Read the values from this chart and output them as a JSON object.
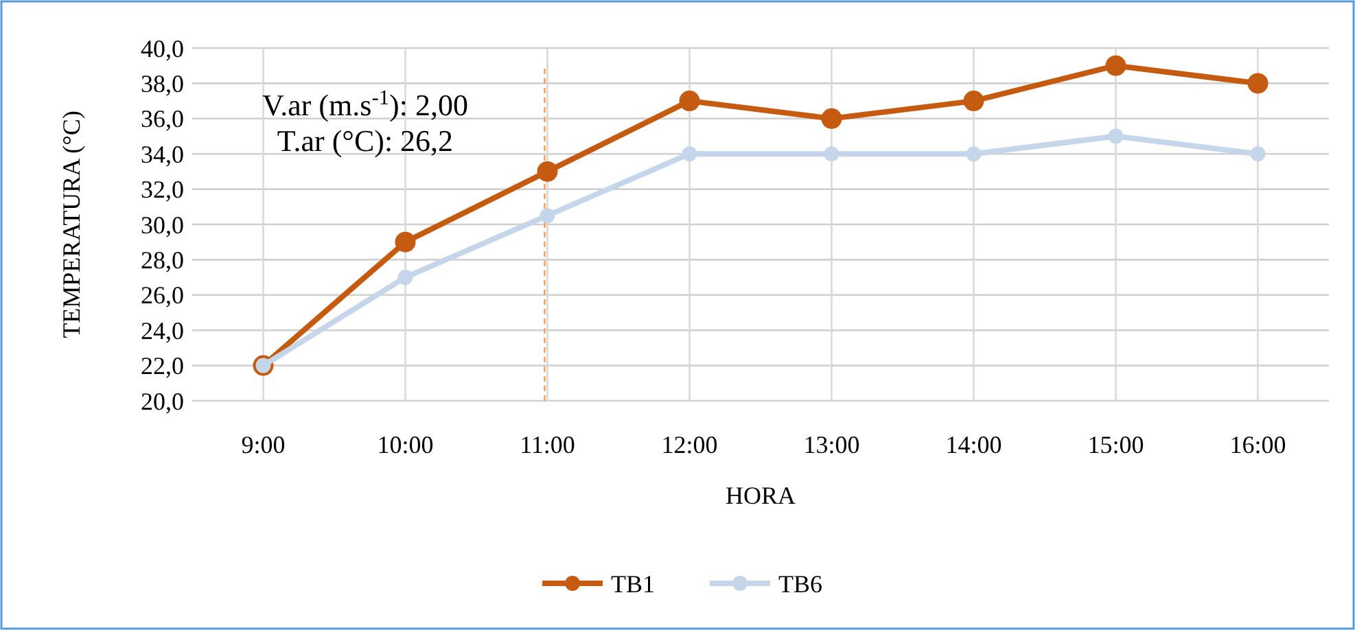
{
  "chart_data": {
    "type": "line",
    "xlabel": "HORA",
    "ylabel": "TEMPERATURA (°C)",
    "categories": [
      "9:00",
      "10:00",
      "11:00",
      "12:00",
      "13:00",
      "14:00",
      "15:00",
      "16:00"
    ],
    "series": [
      {
        "name": "TB1",
        "color": "#c55a11",
        "values": [
          22,
          29,
          33,
          37,
          36,
          37,
          39,
          38
        ]
      },
      {
        "name": "TB6",
        "color": "#c5d5ea",
        "values": [
          22,
          27,
          30.5,
          34,
          34,
          34,
          35,
          34
        ]
      }
    ],
    "ylim": [
      20,
      40
    ],
    "yticks": [
      {
        "value": 20,
        "label": "20,0"
      },
      {
        "value": 22,
        "label": "22,0"
      },
      {
        "value": 24,
        "label": "24,0"
      },
      {
        "value": 26,
        "label": "26,0"
      },
      {
        "value": 28,
        "label": "28,0"
      },
      {
        "value": 30,
        "label": "30,0"
      },
      {
        "value": 32,
        "label": "32,0"
      },
      {
        "value": 34,
        "label": "34,0"
      },
      {
        "value": 36,
        "label": "36,0"
      },
      {
        "value": 38,
        "label": "38,0"
      },
      {
        "value": 40,
        "label": "40,0"
      }
    ],
    "ref_lines": [
      {
        "axis": "x",
        "value": "11:00",
        "color": "#f4a261",
        "line_style": "dashed"
      }
    ],
    "annotations": [
      "V.ar (m.s$^{-1}$): 2,00",
      "T.ar (°C): 26,2"
    ],
    "grid": true,
    "legend": "bottom",
    "marker": "circle",
    "line_style": "solid"
  }
}
